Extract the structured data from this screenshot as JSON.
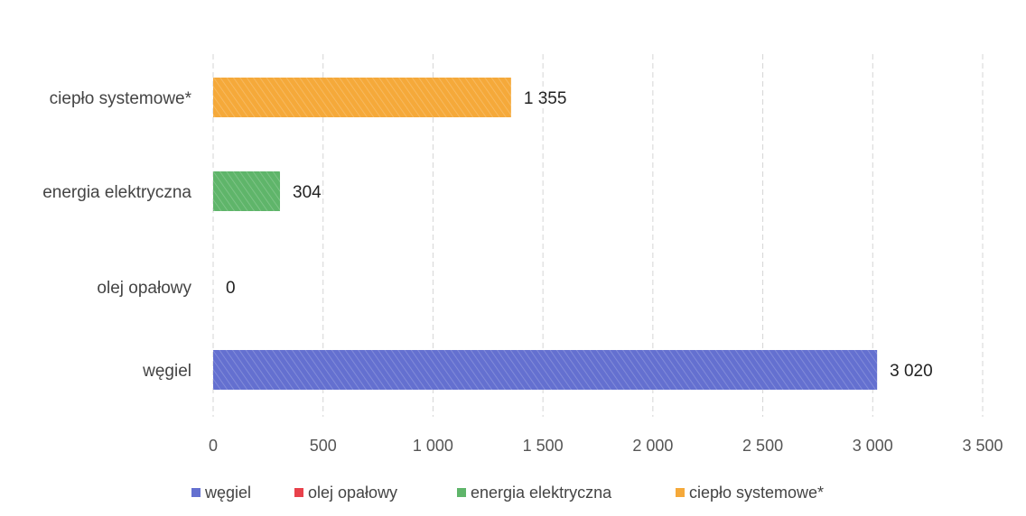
{
  "chart_data": {
    "type": "bar",
    "orientation": "horizontal",
    "categories": [
      "węgiel",
      "olej opałowy",
      "energia elektryczna",
      "ciepło systemowe*"
    ],
    "values": [
      3020,
      0,
      304,
      1355
    ],
    "data_labels": [
      "3 020",
      "0",
      "304",
      "1 355"
    ],
    "colors": [
      "#6470d0",
      "#e8414b",
      "#5fb56a",
      "#f5a93a"
    ],
    "xlim": [
      0,
      3500
    ],
    "xticks": [
      0,
      500,
      1000,
      1500,
      2000,
      2500,
      3000,
      3500
    ],
    "xtick_labels": [
      "0",
      "500",
      "1 000",
      "1 500",
      "2 000",
      "2 500",
      "3 000",
      "3 500"
    ],
    "grid": "vertical",
    "legend_position": "bottom",
    "legend": [
      {
        "label": "węgiel",
        "color": "#6470d0"
      },
      {
        "label": "olej opałowy",
        "color": "#e8414b"
      },
      {
        "label": "energia elektryczna",
        "color": "#5fb56a"
      },
      {
        "label": "ciepło systemowe*",
        "color": "#f5a93a"
      }
    ]
  }
}
